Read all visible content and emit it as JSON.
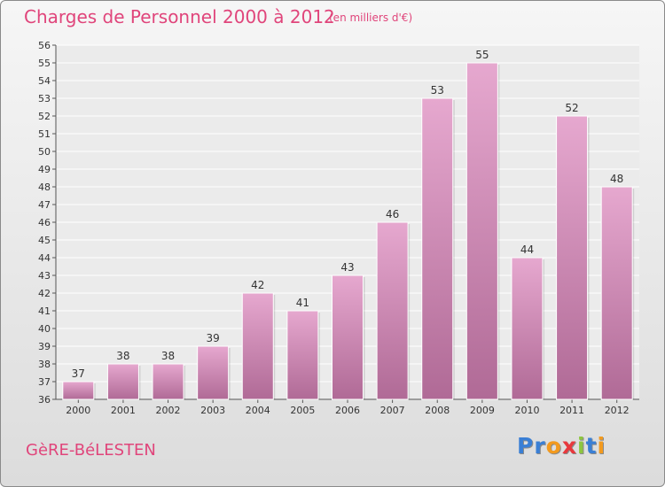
{
  "header": {
    "title": "Charges de Personnel 2000 à 2012",
    "subtitle": "(en milliers d'€)"
  },
  "footer": {
    "commune": "GèRE-BéLESTEN",
    "logo_letters": [
      "P",
      "r",
      "o",
      "x",
      "i",
      "t",
      "i"
    ]
  },
  "colors": {
    "title": "#e0457b",
    "bar_light": "#e6a8cf",
    "bar_dark": "#b06a96",
    "logo": [
      "#3a7fd5",
      "#3a7fd5",
      "#f39a1e",
      "#e8383d",
      "#8dc63f",
      "#3a7fd5",
      "#f39a1e"
    ]
  },
  "chart_data": {
    "type": "bar",
    "title": "Charges de Personnel 2000 à 2012",
    "subtitle": "(en milliers d'€)",
    "categories": [
      "2000",
      "2001",
      "2002",
      "2003",
      "2004",
      "2005",
      "2006",
      "2007",
      "2008",
      "2009",
      "2010",
      "2011",
      "2012"
    ],
    "values": [
      37,
      38,
      38,
      39,
      42,
      41,
      43,
      46,
      53,
      55,
      44,
      52,
      48
    ],
    "xlabel": "",
    "ylabel": "",
    "ylim": [
      36,
      56
    ],
    "yticks": [
      36,
      37,
      38,
      39,
      40,
      41,
      42,
      43,
      44,
      45,
      46,
      47,
      48,
      49,
      50,
      51,
      52,
      53,
      54,
      55,
      56
    ],
    "grid": true,
    "legend": "none"
  }
}
